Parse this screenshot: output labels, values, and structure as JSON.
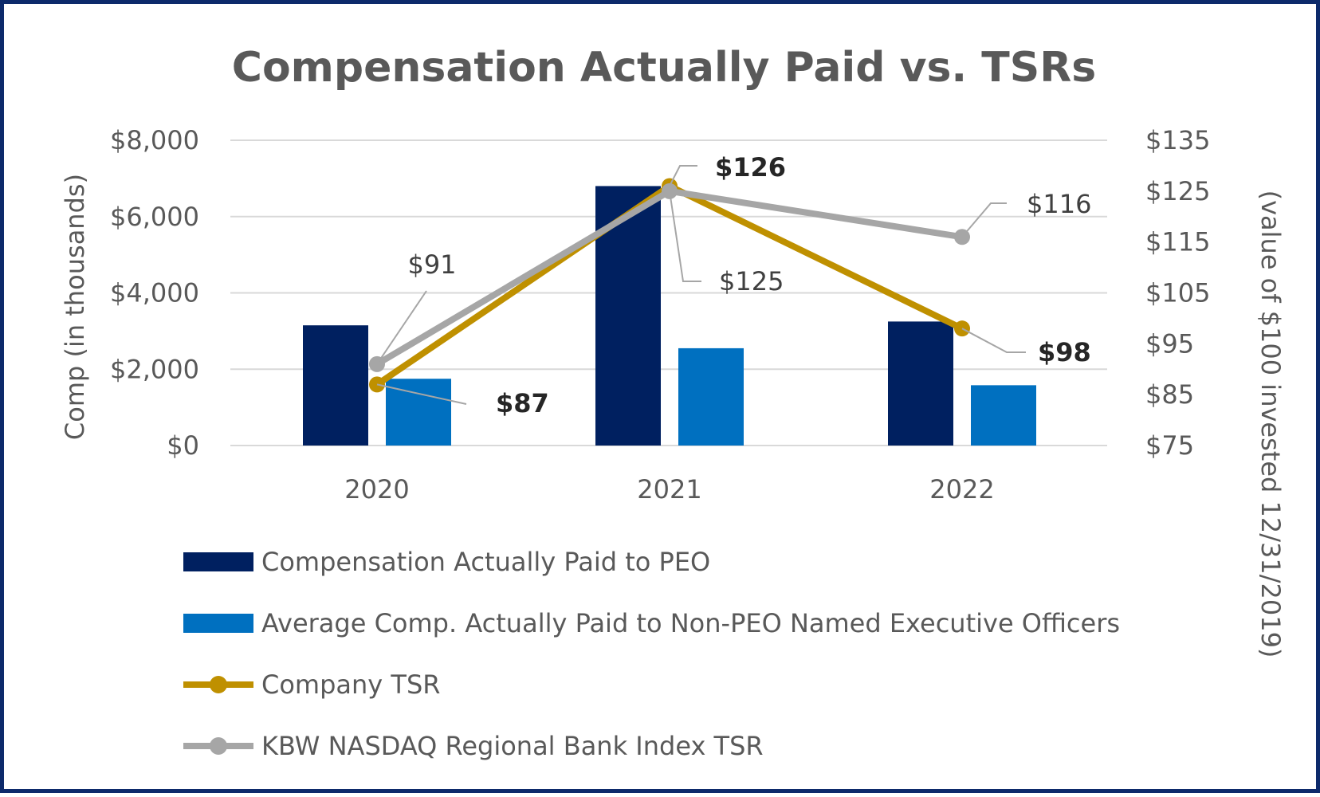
{
  "chart_data": {
    "type": "bar",
    "title": "Compensation Actually Paid vs. TSRs",
    "categories": [
      "2020",
      "2021",
      "2022"
    ],
    "ylabel": "Comp (in thousands)",
    "ylabel_right": "(value of $100 invested 12/31/2019)",
    "ylim": [
      0,
      8000
    ],
    "ylim_right": [
      75,
      135
    ],
    "yticks": [
      0,
      2000,
      4000,
      6000,
      8000
    ],
    "yticks_labels": [
      "$0",
      "$2,000",
      "$4,000",
      "$6,000",
      "$8,000"
    ],
    "yticks_right": [
      75,
      85,
      95,
      105,
      115,
      125,
      135
    ],
    "yticks_right_labels": [
      "$75",
      "$85",
      "$95",
      "$105",
      "$115",
      "$125",
      "$135"
    ],
    "grid": true,
    "legend_position": "bottom-left",
    "series": [
      {
        "name": "Compensation Actually Paid to PEO",
        "kind": "bar",
        "axis": "left",
        "color": "#002060",
        "values": [
          3150,
          6800,
          3250
        ]
      },
      {
        "name": "Average Comp. Actually Paid to Non-PEO Named Executive Officers",
        "kind": "bar",
        "axis": "left",
        "color": "#0070c0",
        "values": [
          1750,
          2550,
          1580
        ]
      },
      {
        "name": "Company TSR",
        "kind": "line",
        "axis": "right",
        "color": "#bf9000",
        "values": [
          87,
          126,
          98
        ],
        "labels": [
          "$87",
          "$126",
          "$98"
        ],
        "label_bold": true
      },
      {
        "name": "KBW NASDAQ Regional Bank Index TSR",
        "kind": "line",
        "axis": "right",
        "color": "#a6a6a6",
        "values": [
          91,
          125,
          116
        ],
        "labels": [
          "$91",
          "$125",
          "$116"
        ],
        "label_bold": false
      }
    ]
  }
}
